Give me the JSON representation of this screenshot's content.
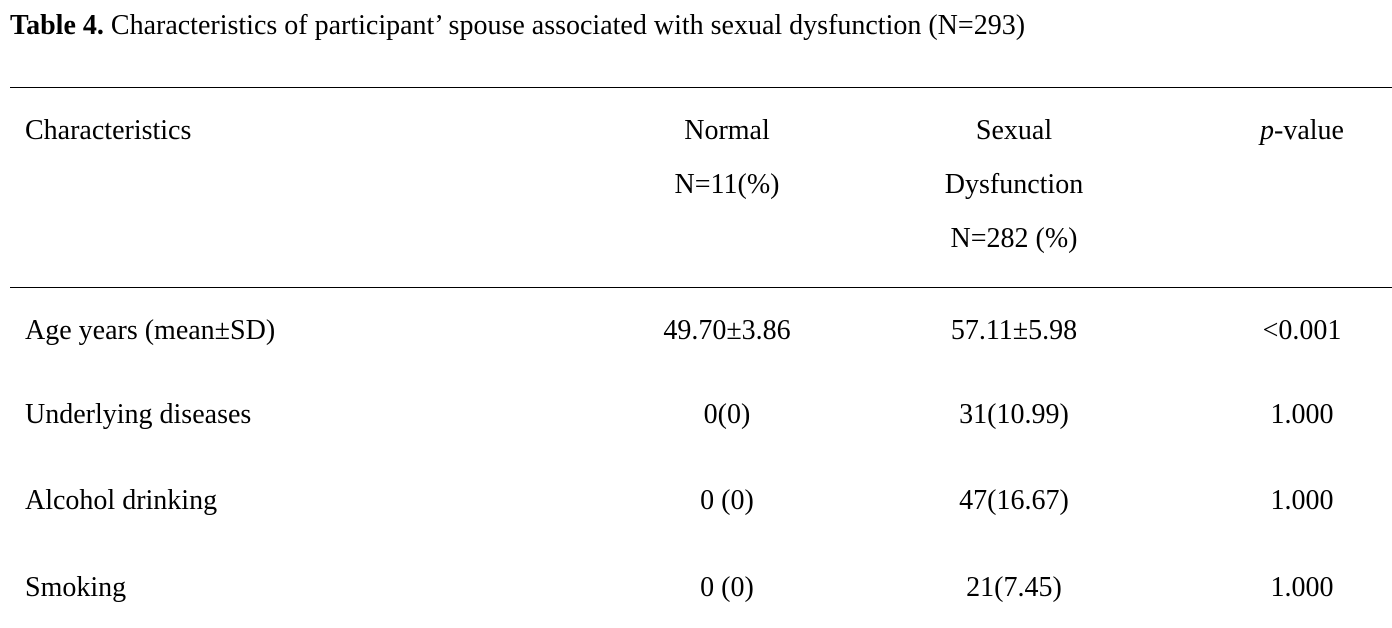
{
  "caption": {
    "label": "Table 4.",
    "text": " Characteristics of participant’ spouse associated with sexual dysfunction  (N=293)"
  },
  "table": {
    "header": {
      "characteristics": "Characteristics",
      "normal": [
        "Normal",
        "N=11(%)"
      ],
      "dysfunction": [
        "Sexual",
        "Dysfunction",
        "N=282 (%)"
      ],
      "pvalue_italic": "p",
      "pvalue_rest": "-value"
    },
    "rows": [
      {
        "characteristic": "Age years (mean±SD)",
        "normal": "49.70±3.86",
        "dysfunction": "57.11±5.98",
        "p": "<0.001"
      },
      {
        "characteristic": "Underlying diseases",
        "normal": "0(0)",
        "dysfunction": "31(10.99)",
        "p": "1.000"
      },
      {
        "characteristic": "Alcohol drinking",
        "normal": "0 (0)",
        "dysfunction": "47(16.67)",
        "p": "1.000"
      },
      {
        "characteristic": "Smoking",
        "normal": "0 (0)",
        "dysfunction": "21(7.45)",
        "p": "1.000"
      }
    ]
  }
}
